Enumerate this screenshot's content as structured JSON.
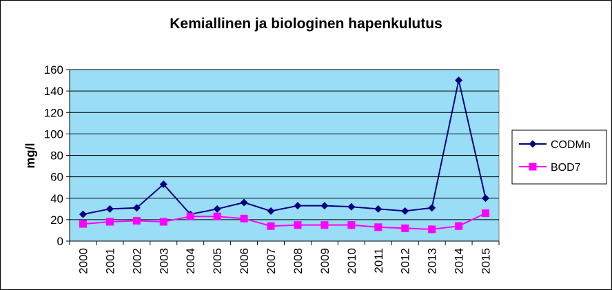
{
  "chart_data": {
    "type": "line",
    "title": "Kemiallinen ja biologinen hapenkulutus",
    "xlabel": "",
    "ylabel": "mg/l",
    "ylim": [
      0,
      160
    ],
    "yticks": [
      0,
      20,
      40,
      60,
      80,
      100,
      120,
      140,
      160
    ],
    "categories": [
      "2000",
      "2001",
      "2002",
      "2003",
      "2004",
      "2005",
      "2006",
      "2007",
      "2008",
      "2009",
      "2010",
      "2011",
      "2012",
      "2013",
      "2014",
      "2015"
    ],
    "grid": true,
    "legend_position": "right",
    "plot_background": "#99DDF7",
    "series": [
      {
        "name": "CODMn",
        "color": "#000080",
        "marker": "diamond",
        "values": [
          25,
          30,
          31,
          53,
          25,
          30,
          36,
          28,
          33,
          33,
          32,
          30,
          28,
          31,
          150,
          40
        ]
      },
      {
        "name": "BOD7",
        "color": "#FF00FF",
        "marker": "square",
        "values": [
          16,
          18,
          19,
          18,
          23,
          23,
          21,
          14,
          15,
          15,
          15,
          13,
          12,
          11,
          14,
          26
        ]
      }
    ]
  }
}
